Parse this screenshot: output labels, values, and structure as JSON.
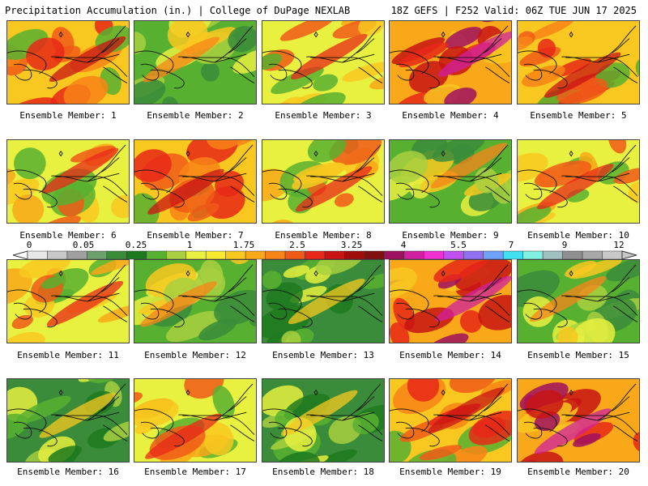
{
  "header": {
    "title": "Precipitation Accumulation (in.) | College of DuPage NEXLAB",
    "run_info": "18Z GEFS | F252 Valid: 06Z TUE JUN 17 2025"
  },
  "panels": [
    {
      "label": "Ensemble Member: 1",
      "theme": "wet"
    },
    {
      "label": "Ensemble Member: 2",
      "theme": "dry"
    },
    {
      "label": "Ensemble Member: 3",
      "theme": "mixed"
    },
    {
      "label": "Ensemble Member: 4",
      "theme": "vwet"
    },
    {
      "label": "Ensemble Member: 5",
      "theme": "wet"
    },
    {
      "label": "Ensemble Member: 6",
      "theme": "mixed"
    },
    {
      "label": "Ensemble Member: 7",
      "theme": "wet"
    },
    {
      "label": "Ensemble Member: 8",
      "theme": "mixed"
    },
    {
      "label": "Ensemble Member: 9",
      "theme": "dry"
    },
    {
      "label": "Ensemble Member: 10",
      "theme": "mixed"
    },
    {
      "label": "Ensemble Member: 11",
      "theme": "mixed"
    },
    {
      "label": "Ensemble Member: 12",
      "theme": "dry"
    },
    {
      "label": "Ensemble Member: 13",
      "theme": "vdry"
    },
    {
      "label": "Ensemble Member: 14",
      "theme": "vwet"
    },
    {
      "label": "Ensemble Member: 15",
      "theme": "dry"
    },
    {
      "label": "Ensemble Member: 16",
      "theme": "vdry"
    },
    {
      "label": "Ensemble Member: 17",
      "theme": "mixed"
    },
    {
      "label": "Ensemble Member: 18",
      "theme": "vdry"
    },
    {
      "label": "Ensemble Member: 19",
      "theme": "wet"
    },
    {
      "label": "Ensemble Member: 20",
      "theme": "vwet"
    }
  ],
  "colorbar": {
    "labels": [
      "0",
      "0.05",
      "0.25",
      "1",
      "1.75",
      "2.5",
      "3.25",
      "4",
      "5.5",
      "7",
      "9",
      "12"
    ],
    "colors": [
      "#e8e8e8",
      "#c8c8c8",
      "#a0a0a0",
      "#6ea06e",
      "#3a8c3a",
      "#1e7a1e",
      "#58b030",
      "#a8d040",
      "#e8f040",
      "#f8e830",
      "#f8c820",
      "#f8a818",
      "#f88418",
      "#f05a18",
      "#e82818",
      "#c81414",
      "#a00c0c",
      "#801010",
      "#a01060",
      "#d020a0",
      "#f030d0",
      "#c050f0",
      "#9070f0",
      "#70a0f8",
      "#40e0f0",
      "#80f0e0",
      "#a0c0c0",
      "#909090",
      "#a8a8a8",
      "#c8c8c8"
    ]
  }
}
